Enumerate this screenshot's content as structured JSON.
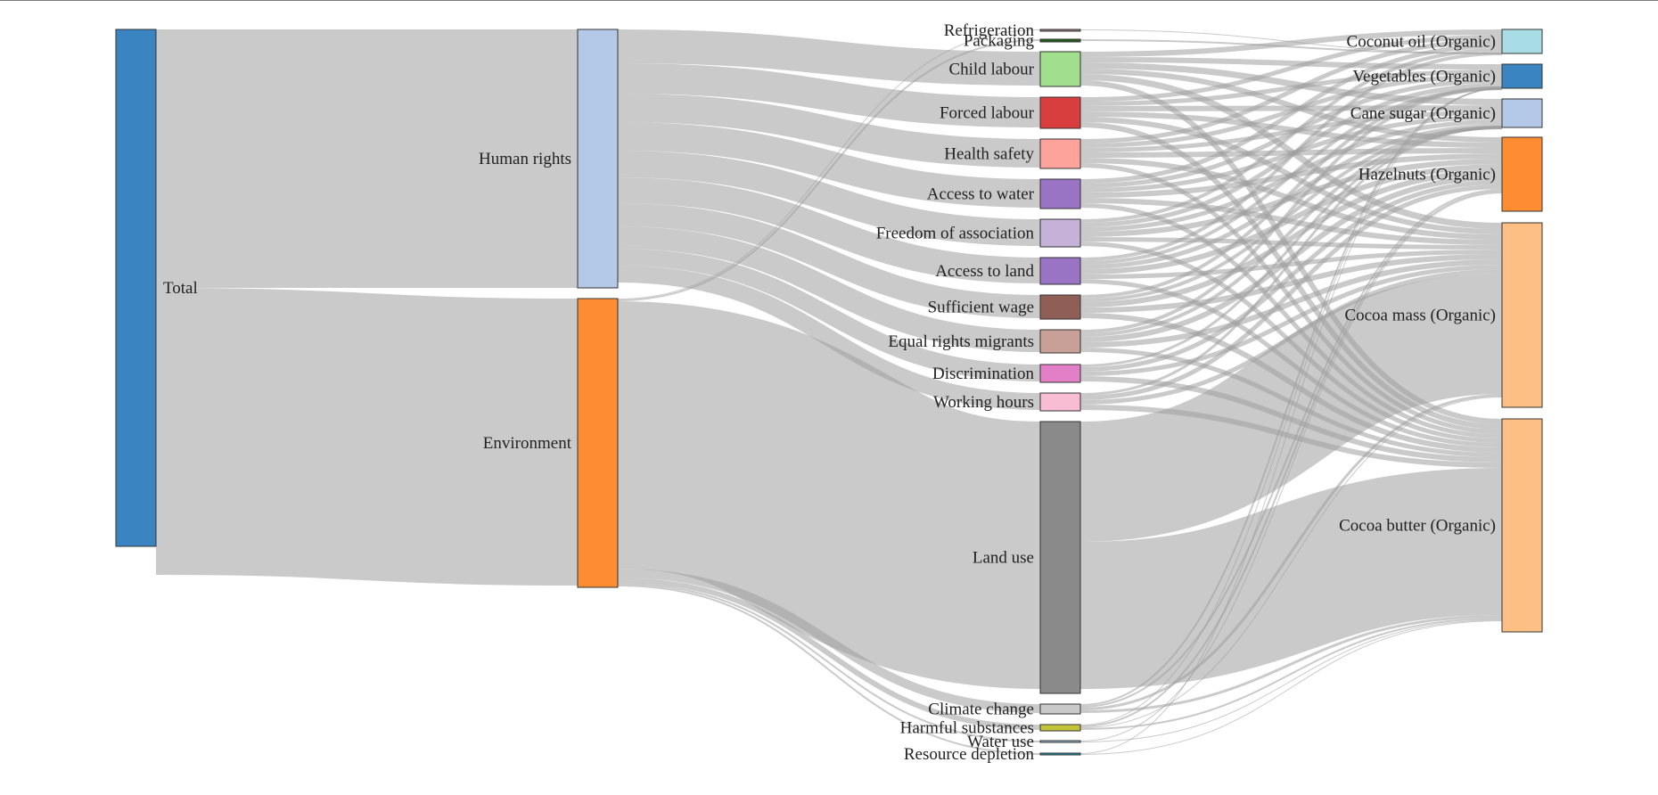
{
  "sankey": {
    "nodes": [
      {
        "id": "total",
        "label": "Total",
        "color": "#3a84c1"
      },
      {
        "id": "hr",
        "label": "Human rights",
        "color": "#b4c9e7"
      },
      {
        "id": "env",
        "label": "Environment",
        "color": "#fd8c32"
      },
      {
        "id": "refrig",
        "label": "Refrigeration",
        "color": "#9a7d7d"
      },
      {
        "id": "pack",
        "label": "Packaging",
        "color": "#1c5d1c"
      },
      {
        "id": "child",
        "label": "Child labour",
        "color": "#a1df8e"
      },
      {
        "id": "forced",
        "label": "Forced labour",
        "color": "#d93e3f"
      },
      {
        "id": "health",
        "label": "Health safety",
        "color": "#fea29c"
      },
      {
        "id": "water",
        "label": "Access to water",
        "color": "#9a74c4"
      },
      {
        "id": "freedom",
        "label": "Freedom of association",
        "color": "#c6b1d9"
      },
      {
        "id": "land_acc",
        "label": "Access to land",
        "color": "#9a74c4"
      },
      {
        "id": "wage",
        "label": "Sufficient wage",
        "color": "#8f5f57"
      },
      {
        "id": "migrants",
        "label": "Equal rights migrants",
        "color": "#c8a097"
      },
      {
        "id": "discrim",
        "label": "Discrimination",
        "color": "#e27fc6"
      },
      {
        "id": "hours",
        "label": "Working hours",
        "color": "#f8bcd3"
      },
      {
        "id": "landuse",
        "label": "Land use",
        "color": "#8a8a8a"
      },
      {
        "id": "climate",
        "label": "Climate change",
        "color": "#c9c9c9"
      },
      {
        "id": "harmful",
        "label": "Harmful substances",
        "color": "#c4c43a"
      },
      {
        "id": "wateruse",
        "label": "Water use",
        "color": "#9bc0d6"
      },
      {
        "id": "resource",
        "label": "Resource depletion",
        "color": "#1d8fa8"
      },
      {
        "id": "coconut",
        "label": "Coconut oil (Organic)",
        "color": "#a8dde6"
      },
      {
        "id": "veg",
        "label": "Vegetables (Organic)",
        "color": "#3a84c1"
      },
      {
        "id": "sugar",
        "label": "Cane sugar (Organic)",
        "color": "#b4c9e7"
      },
      {
        "id": "hazel",
        "label": "Hazelnuts (Organic)",
        "color": "#fd8c32"
      },
      {
        "id": "cmass",
        "label": "Cocoa mass (Organic)",
        "color": "#fdbf84"
      },
      {
        "id": "cbutter",
        "label": "Cocoa butter (Organic)",
        "color": "#fdbf84"
      }
    ],
    "link_color": "#9e9e9e"
  }
}
